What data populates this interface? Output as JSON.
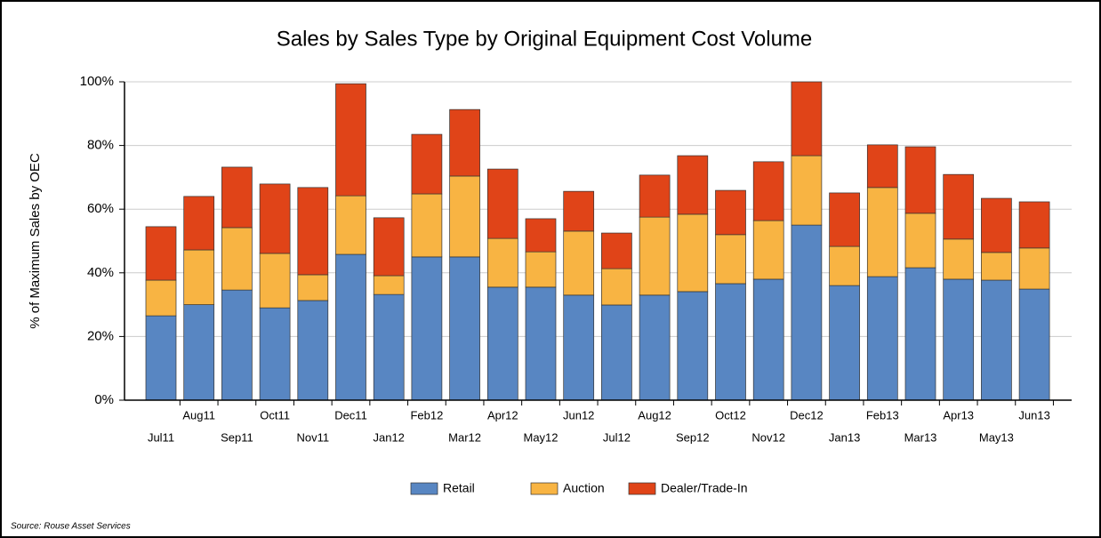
{
  "chart_data": {
    "type": "stacked_bar",
    "title": "Sales by Sales Type by Original Equipment Cost Volume",
    "y_label": "% of Maximum Sales by OEC",
    "source": "Source: Rouse Asset Services",
    "categories": [
      "Jul11",
      "Aug11",
      "Sep11",
      "Oct11",
      "Nov11",
      "Dec11",
      "Jan12",
      "Feb12",
      "Mar12",
      "Apr12",
      "May12",
      "Jun12",
      "Jul12",
      "Aug12",
      "Sep12",
      "Oct12",
      "Nov12",
      "Dec12",
      "Jan13",
      "Feb13",
      "Mar13",
      "Apr13",
      "May13",
      "Jun13"
    ],
    "series": [
      {
        "name": "Retail",
        "color": "#5886c2",
        "values": [
          26.5,
          30,
          34.6,
          29,
          31.3,
          45.8,
          33.2,
          45,
          45,
          35.5,
          35.5,
          33,
          29.9,
          33,
          34.1,
          36.6,
          38,
          55,
          36,
          38.8,
          41.6,
          38,
          37.7,
          34.9
        ]
      },
      {
        "name": "Auction",
        "color": "#f8b443",
        "values": [
          11.2,
          17.2,
          19.6,
          17.1,
          8.1,
          18.4,
          5.9,
          19.8,
          25.4,
          15.3,
          11.1,
          20.1,
          11.4,
          24.5,
          24.3,
          15.4,
          18.4,
          21.8,
          12.3,
          28,
          17.1,
          12.6,
          8.7,
          12.9
        ]
      },
      {
        "name": "Dealer/Trade-In",
        "color": "#e04418",
        "values": [
          16.8,
          16.8,
          19,
          21.8,
          27.4,
          35.2,
          18.2,
          18.7,
          20.9,
          21.8,
          10.4,
          12.5,
          11.2,
          13.2,
          18.4,
          13.9,
          18.5,
          23.2,
          16.8,
          13.4,
          20.9,
          20.3,
          17,
          14.5
        ]
      }
    ],
    "ylim": [
      0,
      100
    ],
    "yticks": [
      {
        "value": 0,
        "label": "0%"
      },
      {
        "value": 20,
        "label": "20%"
      },
      {
        "value": 40,
        "label": "40%"
      },
      {
        "value": 60,
        "label": "60%"
      },
      {
        "value": 80,
        "label": "80%"
      },
      {
        "value": 100,
        "label": "100%"
      }
    ],
    "grid": true,
    "stacked": true,
    "legend": "bottom"
  }
}
